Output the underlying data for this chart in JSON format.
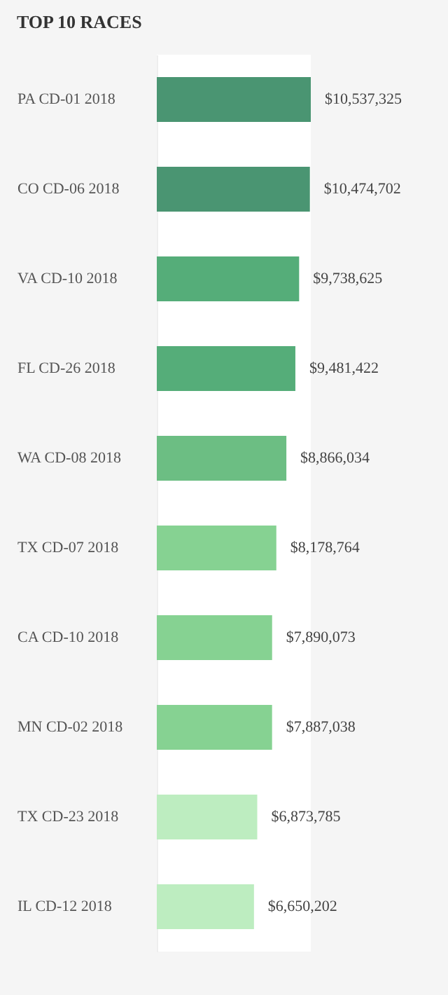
{
  "chart_data": {
    "type": "bar",
    "orientation": "horizontal",
    "title": "TOP 10 RACES",
    "categories": [
      "PA CD-01 2018",
      "CO CD-06 2018",
      "VA CD-10 2018",
      "FL CD-26 2018",
      "WA CD-08 2018",
      "TX CD-07 2018",
      "CA CD-10 2018",
      "MN CD-02 2018",
      "TX CD-23 2018",
      "IL CD-12 2018"
    ],
    "values": [
      10537325,
      10474702,
      9738625,
      9481422,
      8866034,
      8178764,
      7890073,
      7887038,
      6873785,
      6650202
    ],
    "colors": [
      "#4a9572",
      "#4a9572",
      "#55ad79",
      "#55ad79",
      "#6cbe83",
      "#86d292",
      "#86d292",
      "#86d292",
      "#bdedc0",
      "#bdedc0"
    ],
    "value_labels": [
      "$10,537,325",
      "$10,474,702",
      "$9,738,625",
      "$9,481,422",
      "$8,866,034",
      "$8,178,764",
      "$7,890,073",
      "$7,887,038",
      "$6,873,785",
      "$6,650,202"
    ],
    "tick_labels": "y"
  }
}
